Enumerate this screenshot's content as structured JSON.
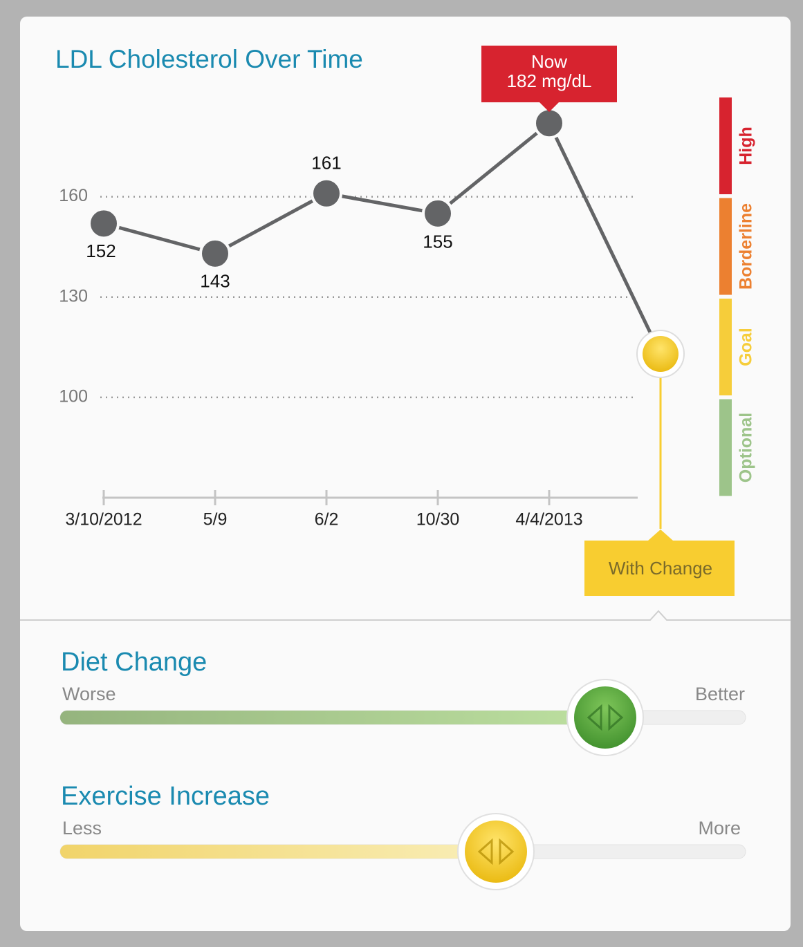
{
  "chart_data": {
    "type": "line",
    "title": "LDL Cholesterol Over Time",
    "categories": [
      "3/10/2012",
      "5/9",
      "6/2",
      "10/30",
      "4/4/2013"
    ],
    "values": [
      152,
      143,
      161,
      155,
      182
    ],
    "color": "#636466",
    "ylim": [
      70,
      190
    ],
    "yticks": [
      100,
      130,
      160
    ],
    "grid": true,
    "callout": {
      "title": "Now",
      "label": "182 mg/dL"
    },
    "projection": {
      "label": "With Change",
      "value": 113,
      "color": "#f8cd30"
    },
    "zones": [
      {
        "name": "High",
        "color": "#d7232f"
      },
      {
        "name": "Borderline",
        "color": "#ec8030"
      },
      {
        "name": "Goal",
        "color": "#f6cd3a"
      },
      {
        "name": "Optional",
        "color": "#9dc48a"
      }
    ]
  },
  "sliders": [
    {
      "title": "Diet Change",
      "min_label": "Worse",
      "max_label": "Better"
    },
    {
      "title": "Exercise Increase",
      "min_label": "Less",
      "max_label": "More"
    }
  ]
}
